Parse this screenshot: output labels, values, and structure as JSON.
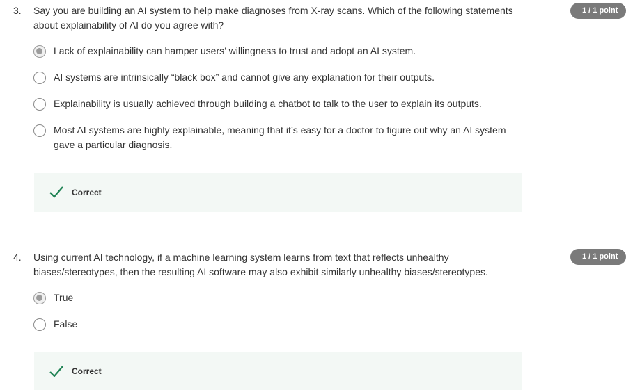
{
  "questions": [
    {
      "number": "3.",
      "text": "Say you are building an AI system to help make diagnoses from X-ray scans. Which of the following statements about explainability of AI do you agree with?",
      "points": "1 / 1 point",
      "options": [
        {
          "label": "Lack of explainability can hamper users’ willingness to trust and adopt an AI system.",
          "selected": true
        },
        {
          "label": "AI systems are intrinsically “black box” and cannot give any explanation for their outputs.",
          "selected": false
        },
        {
          "label": "Explainability is usually achieved through building a chatbot to talk to the user to explain its outputs.",
          "selected": false
        },
        {
          "label": "Most AI systems are highly explainable, meaning that it’s easy for a doctor to figure out why an AI system gave a particular diagnosis.",
          "selected": false
        }
      ],
      "feedback": {
        "label": "Correct",
        "icon": "checkmark-icon",
        "color": "#1f8354"
      }
    },
    {
      "number": "4.",
      "text": "Using current AI technology, if a machine learning system learns from text that reflects unhealthy biases/stereotypes, then the resulting AI software may also exhibit similarly unhealthy biases/stereotypes.",
      "points": "1 / 1 point",
      "options": [
        {
          "label": "True",
          "selected": true
        },
        {
          "label": "False",
          "selected": false
        }
      ],
      "feedback": {
        "label": "Correct",
        "icon": "checkmark-icon",
        "color": "#1f8354"
      }
    }
  ]
}
